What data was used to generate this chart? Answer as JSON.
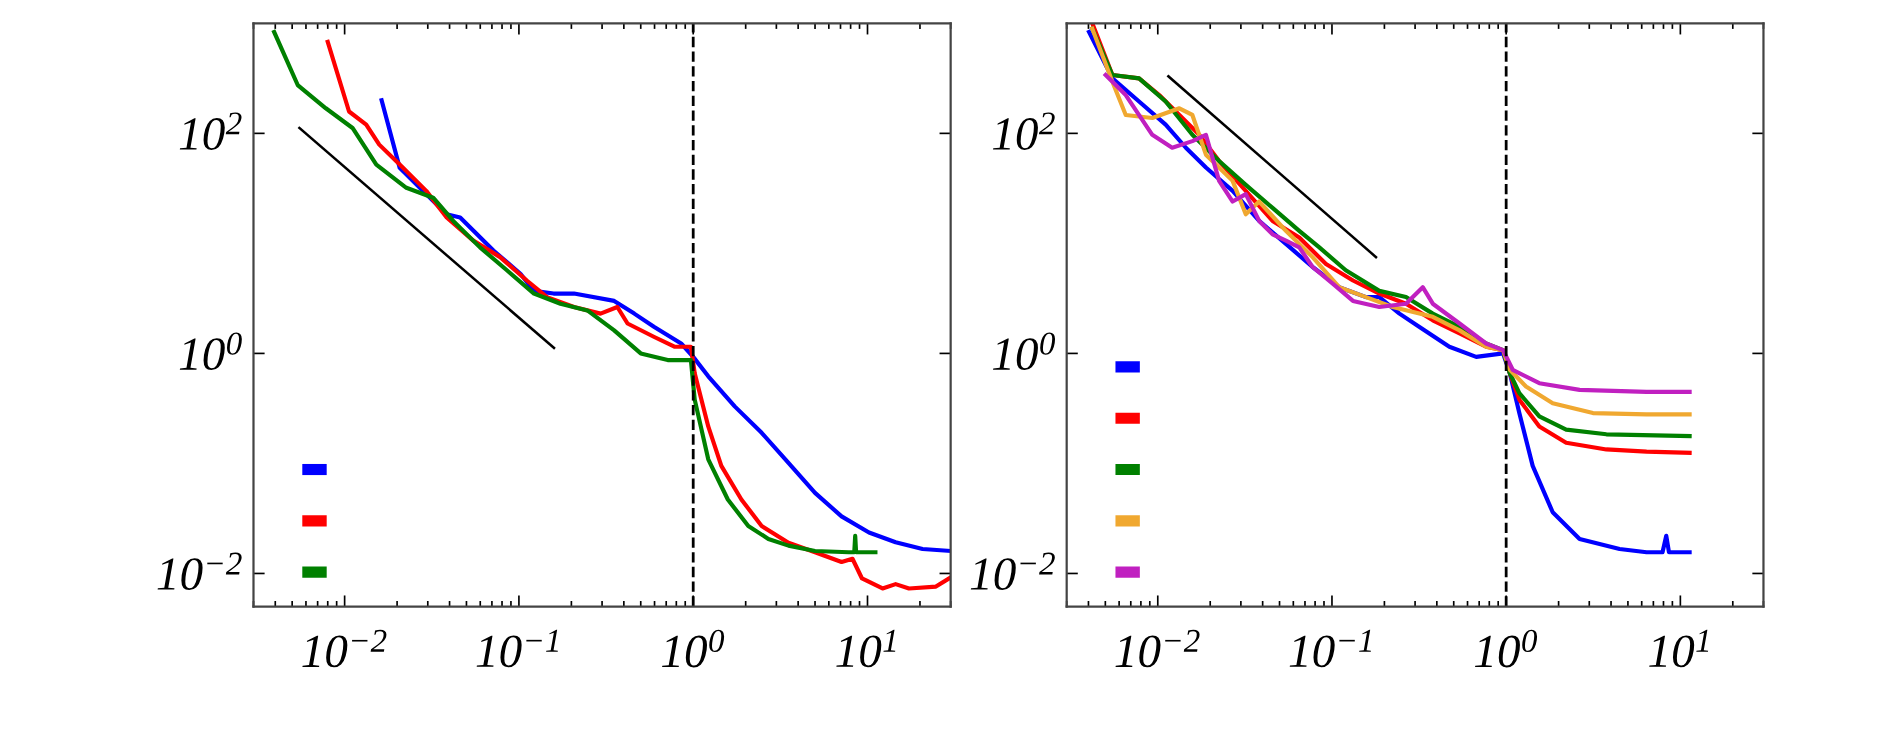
{
  "chart_data": [
    {
      "type": "line",
      "log": "xy",
      "xlim": [
        0.003,
        30
      ],
      "ylim": [
        0.005,
        1000
      ],
      "xticks": [
        {
          "value": 0.01,
          "label": "10$^{−2}$"
        },
        {
          "value": 0.1,
          "label": "10$^{−1}$"
        },
        {
          "value": 1,
          "label": "10$^{0}$"
        },
        {
          "value": 10,
          "label": "10$^{1}$"
        }
      ],
      "yticks": [
        {
          "value": 0.01,
          "label": "10$^{−2}$"
        },
        {
          "value": 1,
          "label": "10$^{0}$"
        },
        {
          "value": 100,
          "label": "10$^{2}$"
        }
      ],
      "grid": false,
      "line_style": "solid",
      "marker": "none",
      "ref_lines": [
        {
          "axis": "x",
          "value": 1,
          "label": null,
          "color": "#000000",
          "line_style": "dashed"
        }
      ],
      "series": [
        {
          "color": "#0000ff",
          "x": [
            0.0163,
            0.0207,
            0.027,
            0.0385,
            0.046,
            0.0714,
            0.102,
            0.122,
            0.158,
            0.207,
            0.352,
            0.459,
            0.598,
            0.853,
            1,
            1.22,
            1.73,
            2.47,
            3.52,
            5.0,
            7.1,
            10.2,
            14.5,
            20.7,
            30
          ],
          "values": [
            200,
            48.6,
            32,
            18.4,
            17.2,
            8.6,
            5.3,
            3.7,
            3.5,
            3.5,
            3.0,
            2.3,
            1.74,
            1.23,
            0.93,
            0.62,
            0.33,
            0.19,
            0.101,
            0.054,
            0.033,
            0.0236,
            0.0192,
            0.0167,
            0.016
          ]
        },
        {
          "color": "#ff0000",
          "x": [
            0.008,
            0.0106,
            0.0133,
            0.0158,
            0.0207,
            0.0294,
            0.0385,
            0.0547,
            0.078,
            0.111,
            0.145,
            0.207,
            0.294,
            0.367,
            0.42,
            0.598,
            0.78,
            0.97,
            1.02,
            1.22,
            1.45,
            1.89,
            2.47,
            3.52,
            5.0,
            7.1,
            8.2,
            9.3,
            12.2,
            14.5,
            17.3,
            24.7,
            30
          ],
          "values": [
            678,
            158,
            120,
            79,
            52,
            30,
            17.2,
            10.6,
            7.5,
            4.6,
            3.25,
            2.64,
            2.3,
            2.64,
            1.87,
            1.41,
            1.15,
            1.15,
            0.66,
            0.217,
            0.095,
            0.047,
            0.027,
            0.019,
            0.0156,
            0.0127,
            0.0136,
            0.009,
            0.0073,
            0.008,
            0.0073,
            0.0076,
            0.0092
          ]
        },
        {
          "color": "#008000",
          "x": [
            0.00394,
            0.00538,
            0.0078,
            0.0111,
            0.0152,
            0.0226,
            0.0322,
            0.042,
            0.0598,
            0.0853,
            0.122,
            0.173,
            0.247,
            0.352,
            0.5,
            0.714,
            0.97,
            1.02,
            1.22,
            1.58,
            2.07,
            2.7,
            3.52,
            5.0,
            7.8,
            8.4,
            8.5,
            8.6,
            11.1
          ],
          "values": [
            835,
            275,
            169,
            112,
            52,
            32,
            26,
            16,
            9.2,
            5.7,
            3.5,
            2.83,
            2.46,
            1.62,
            1.0,
            0.87,
            0.87,
            0.38,
            0.109,
            0.047,
            0.027,
            0.0206,
            0.0179,
            0.016,
            0.0156,
            0.0156,
            0.022,
            0.0156,
            0.0156
          ]
        },
        {
          "type": "line",
          "color": "#000000",
          "x": [
            0.0055,
            0.159
          ],
          "values": [
            112,
            1.12
          ]
        }
      ]
    },
    {
      "type": "line",
      "log": "xy",
      "xlim": [
        0.003,
        30
      ],
      "ylim": [
        0.005,
        1000
      ],
      "xticks": [
        {
          "value": 0.01,
          "label": "10$^{−2}$"
        },
        {
          "value": 0.1,
          "label": "10$^{−1}$"
        },
        {
          "value": 1,
          "label": "10$^{0}$"
        },
        {
          "value": 10,
          "label": "10$^{1}$"
        }
      ],
      "yticks": [
        {
          "value": 0.01,
          "label": "10$^{−2}$"
        },
        {
          "value": 1,
          "label": "10$^{0}$"
        },
        {
          "value": 100,
          "label": "10$^{2}$"
        }
      ],
      "grid": false,
      "line_style": "solid",
      "marker": "none",
      "ref_lines": [
        {
          "axis": "x",
          "value": 1,
          "label": null,
          "color": "#000000",
          "line_style": "dashed"
        }
      ],
      "series": [
        {
          "color": "#0000ff",
          "x": [
            0.00403,
            0.00549,
            0.00781,
            0.0111,
            0.0145,
            0.0189,
            0.0269,
            0.0382,
            0.0544,
            0.0774,
            0.11,
            0.157,
            0.187,
            0.244,
            0.318,
            0.472,
            0.673,
            0.96,
            1.05,
            1.19,
            1.42,
            1.85,
            2.64,
            4.48,
            6.4,
            7.9,
            8.3,
            8.6,
            11.3
          ],
          "values": [
            835,
            316,
            195,
            120,
            74,
            49,
            30,
            16,
            9.9,
            6.1,
            4.0,
            3.25,
            3.25,
            2.3,
            1.74,
            1.15,
            0.93,
            1.0,
            0.66,
            0.287,
            0.095,
            0.036,
            0.0206,
            0.0167,
            0.0156,
            0.0156,
            0.022,
            0.0156,
            0.0156
          ]
        },
        {
          "color": "#ff0000",
          "x": [
            0.00421,
            0.00549,
            0.00781,
            0.0102,
            0.0133,
            0.0173,
            0.0225,
            0.032,
            0.0456,
            0.0649,
            0.0924,
            0.132,
            0.187,
            0.266,
            0.379,
            0.54,
            0.767,
            0.96,
            1.05,
            1.19,
            1.55,
            2.21,
            3.76,
            6.4,
            11.3
          ],
          "values": [
            1000,
            339,
            316,
            223,
            147,
            97,
            56,
            30,
            16,
            11.3,
            6.5,
            4.6,
            3.5,
            2.83,
            2.0,
            1.52,
            1.15,
            1.07,
            0.66,
            0.38,
            0.217,
            0.154,
            0.134,
            0.128,
            0.125
          ]
        },
        {
          "color": "#008000",
          "x": [
            0.00421,
            0.00549,
            0.00781,
            0.0111,
            0.0158,
            0.0225,
            0.032,
            0.0456,
            0.0649,
            0.0846,
            0.12,
            0.187,
            0.266,
            0.379,
            0.54,
            0.767,
            0.96,
            1.05,
            1.19,
            1.55,
            2.21,
            3.76,
            11.3
          ],
          "values": [
            895,
            339,
            316,
            195,
            97,
            56,
            34,
            21,
            13,
            9.2,
            5.7,
            3.7,
            3.25,
            2.3,
            1.74,
            1.23,
            1.07,
            0.66,
            0.435,
            0.268,
            0.203,
            0.184,
            0.177
          ]
        },
        {
          "color": "#f0a830",
          "x": [
            0.00421,
            0.00549,
            0.00655,
            0.0093,
            0.0133,
            0.0158,
            0.0189,
            0.0269,
            0.032,
            0.0382,
            0.0544,
            0.0774,
            0.11,
            0.157,
            0.223,
            0.379,
            0.54,
            0.767,
            0.96,
            1.05,
            1.3,
            1.85,
            3.15,
            6.4,
            11.3
          ],
          "values": [
            895,
            295,
            147,
            138,
            169,
            147,
            64,
            37,
            18.4,
            24,
            13,
            7.5,
            4.0,
            3.25,
            2.64,
            2.15,
            1.62,
            1.15,
            1.07,
            0.71,
            0.5,
            0.353,
            0.287,
            0.279,
            0.279
          ]
        },
        {
          "color": "#c020c0",
          "x": [
            0.00502,
            0.00655,
            0.0093,
            0.0121,
            0.0158,
            0.0189,
            0.0225,
            0.0269,
            0.032,
            0.0382,
            0.0456,
            0.0544,
            0.0649,
            0.0774,
            0.101,
            0.132,
            0.187,
            0.266,
            0.332,
            0.379,
            0.54,
            0.767,
            0.96,
            1.09,
            1.55,
            2.64,
            6.4,
            11.3
          ],
          "values": [
            339,
            223,
            97,
            74,
            85,
            97,
            37,
            24,
            28,
            16,
            12.1,
            10.6,
            9.2,
            6.1,
            4.3,
            3.0,
            2.64,
            2.83,
            4.0,
            2.83,
            1.87,
            1.23,
            1.07,
            0.71,
            0.536,
            0.466,
            0.447,
            0.447
          ]
        },
        {
          "type": "line",
          "color": "#000000",
          "x": [
            0.0115,
            0.179
          ],
          "values": [
            330,
            7.5
          ]
        }
      ]
    }
  ]
}
